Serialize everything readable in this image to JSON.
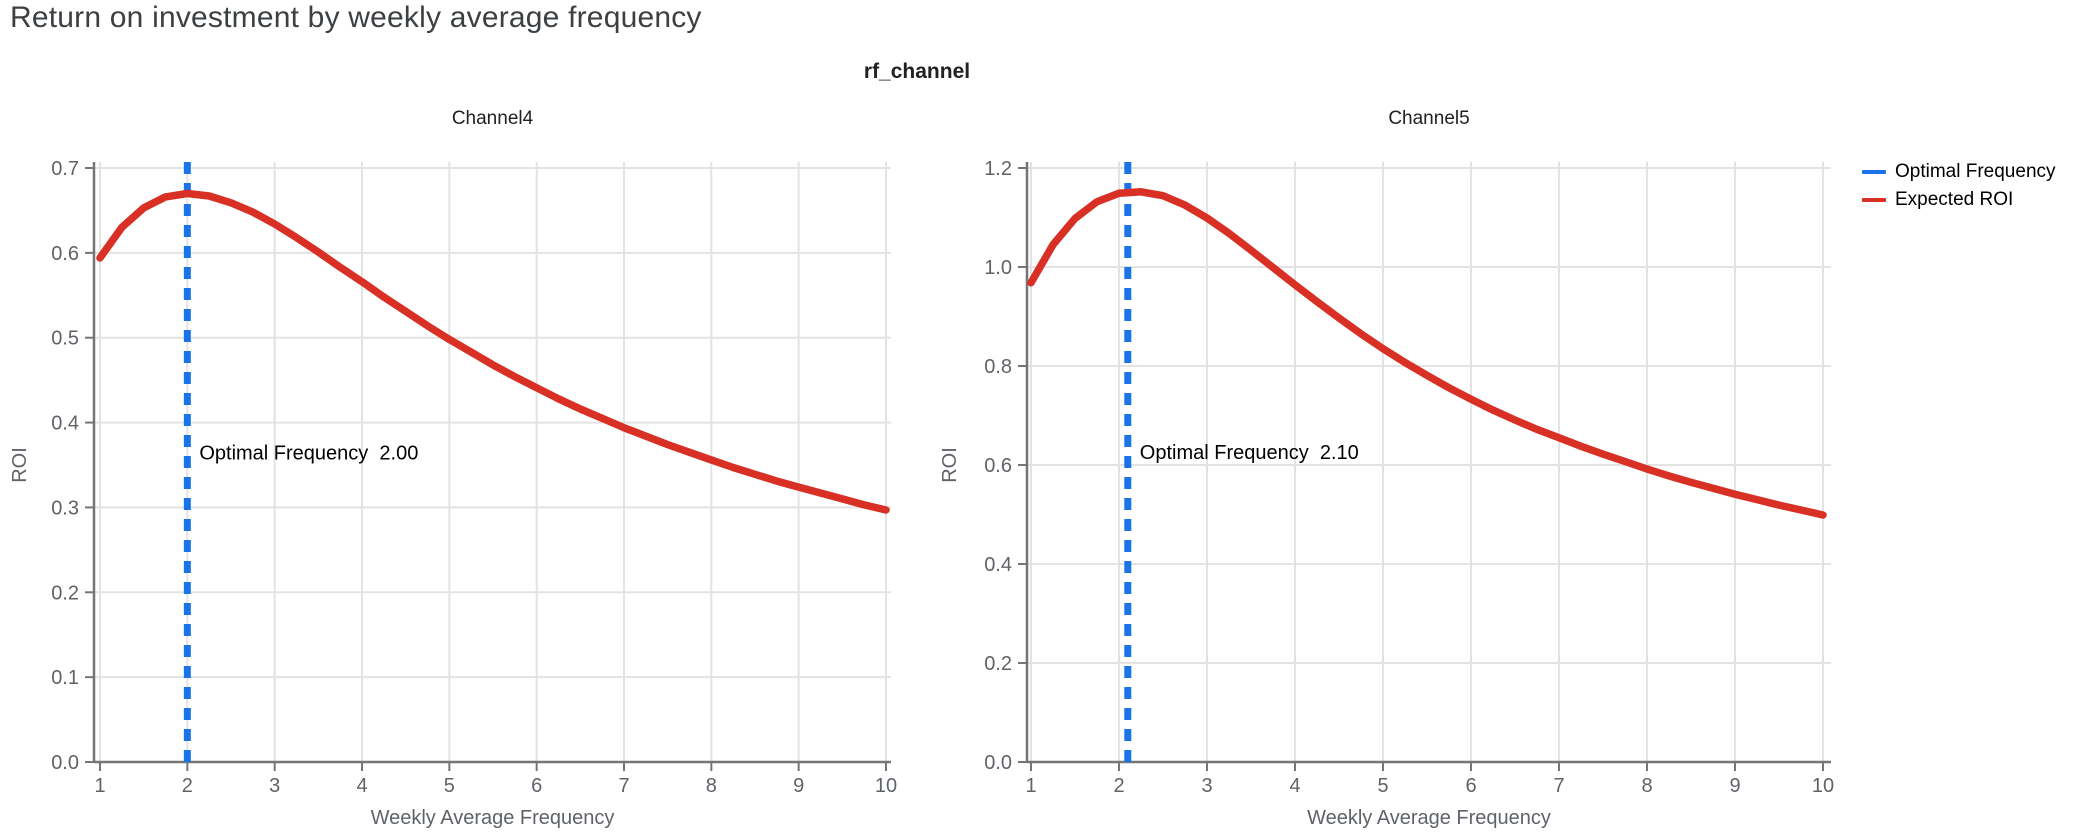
{
  "page": {
    "title": "Return on investment by weekly average frequency",
    "facet_title": "rf_channel"
  },
  "legend": {
    "items": [
      {
        "label": "Optimal Frequency",
        "color": "#1a73e8"
      },
      {
        "label": "Expected ROI",
        "color": "#d93025"
      }
    ]
  },
  "colors": {
    "roi_line": "#d93025",
    "optimal_line": "#1a73e8",
    "grid": "#e3e3e3",
    "axis": "#757575",
    "tick_label": "#5f6368",
    "page_title": "#3c4043",
    "annotation": "#000000"
  },
  "chart_data": [
    {
      "type": "line",
      "title": "Channel4",
      "xlabel": "Weekly Average Frequency",
      "ylabel": "ROI",
      "xlim": [
        1,
        10
      ],
      "ylim": [
        0,
        0.7
      ],
      "xticks": [
        1,
        2,
        3,
        4,
        5,
        6,
        7,
        8,
        9,
        10
      ],
      "yticks": [
        0.0,
        0.1,
        0.2,
        0.3,
        0.4,
        0.5,
        0.6,
        0.7
      ],
      "xtick_decimals": 0,
      "ytick_decimals": 1,
      "grid": true,
      "optimal_frequency": 2.0,
      "annotation": {
        "label": "Optimal Frequency  2.00",
        "y": 0.365
      },
      "series": [
        {
          "name": "Expected ROI",
          "x": [
            1.0,
            1.25,
            1.5,
            1.75,
            2.0,
            2.25,
            2.5,
            2.75,
            3.0,
            3.25,
            3.5,
            3.75,
            4.0,
            4.25,
            4.5,
            4.75,
            5.0,
            5.25,
            5.5,
            5.75,
            6.0,
            6.25,
            6.5,
            6.75,
            7.0,
            7.25,
            7.5,
            7.75,
            8.0,
            8.25,
            8.5,
            8.75,
            9.0,
            9.25,
            9.5,
            9.75,
            10.0
          ],
          "y": [
            0.594,
            0.63,
            0.653,
            0.666,
            0.67,
            0.667,
            0.659,
            0.648,
            0.634,
            0.618,
            0.601,
            0.583,
            0.566,
            0.548,
            0.531,
            0.514,
            0.498,
            0.483,
            0.468,
            0.454,
            0.441,
            0.428,
            0.416,
            0.405,
            0.394,
            0.384,
            0.374,
            0.365,
            0.356,
            0.347,
            0.339,
            0.331,
            0.324,
            0.317,
            0.31,
            0.303,
            0.297
          ]
        }
      ]
    },
    {
      "type": "line",
      "title": "Channel5",
      "xlabel": "Weekly Average Frequency",
      "ylabel": "ROI",
      "xlim": [
        1,
        10
      ],
      "ylim": [
        0,
        1.2
      ],
      "xticks": [
        1,
        2,
        3,
        4,
        5,
        6,
        7,
        8,
        9,
        10
      ],
      "yticks": [
        0.0,
        0.2,
        0.4,
        0.6,
        0.8,
        1.0,
        1.2
      ],
      "xtick_decimals": 0,
      "ytick_decimals": 1,
      "grid": true,
      "optimal_frequency": 2.1,
      "annotation": {
        "label": "Optimal Frequency  2.10",
        "y": 0.626
      },
      "series": [
        {
          "name": "Expected ROI",
          "x": [
            1.0,
            1.25,
            1.5,
            1.75,
            2.0,
            2.25,
            2.5,
            2.75,
            3.0,
            3.25,
            3.5,
            3.75,
            4.0,
            4.25,
            4.5,
            4.75,
            5.0,
            5.25,
            5.5,
            5.75,
            6.0,
            6.25,
            6.5,
            6.75,
            7.0,
            7.25,
            7.5,
            7.75,
            8.0,
            8.25,
            8.5,
            8.75,
            9.0,
            9.25,
            9.5,
            9.75,
            10.0
          ],
          "y": [
            0.968,
            1.045,
            1.098,
            1.132,
            1.149,
            1.152,
            1.144,
            1.125,
            1.099,
            1.068,
            1.034,
            0.999,
            0.964,
            0.93,
            0.897,
            0.865,
            0.835,
            0.807,
            0.781,
            0.756,
            0.733,
            0.711,
            0.691,
            0.672,
            0.655,
            0.638,
            0.622,
            0.607,
            0.592,
            0.578,
            0.565,
            0.553,
            0.541,
            0.53,
            0.519,
            0.509,
            0.499
          ]
        }
      ]
    }
  ]
}
